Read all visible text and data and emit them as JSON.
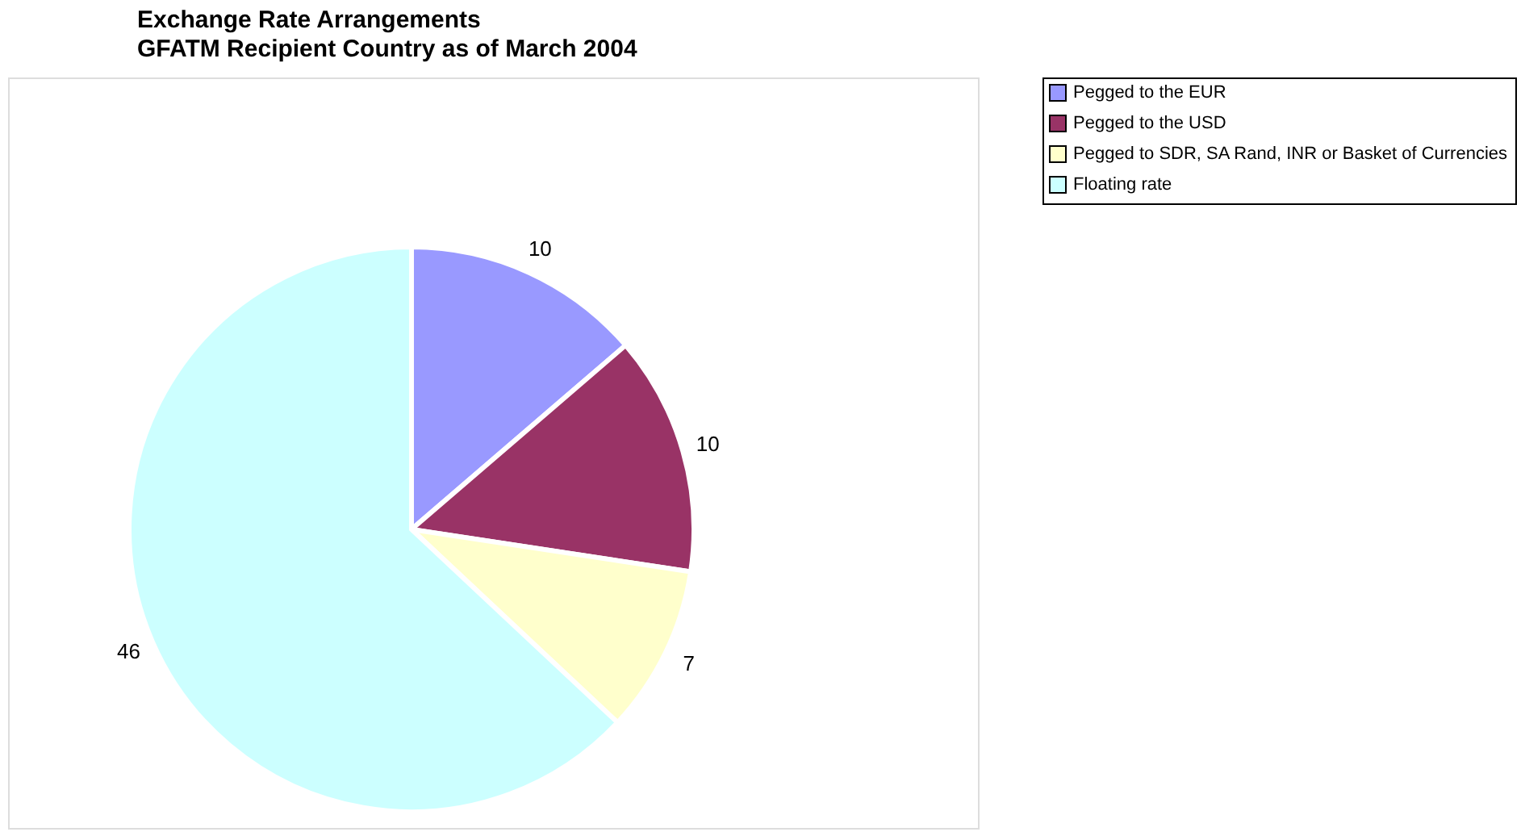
{
  "chart_data": {
    "type": "pie",
    "title": "Exchange Rate Arrangements",
    "subtitle": "GFATM Recipient Country as of March 2004",
    "categories": [
      "Pegged to the EUR",
      "Pegged to the USD",
      "Pegged to SDR, SA Rand, INR or Basket of Currencies",
      "Floating rate"
    ],
    "values": [
      10,
      10,
      7,
      46
    ],
    "colors": [
      "#9999ff",
      "#993366",
      "#ffffcc",
      "#ccffff"
    ],
    "data_labels": true,
    "legend": "right"
  }
}
